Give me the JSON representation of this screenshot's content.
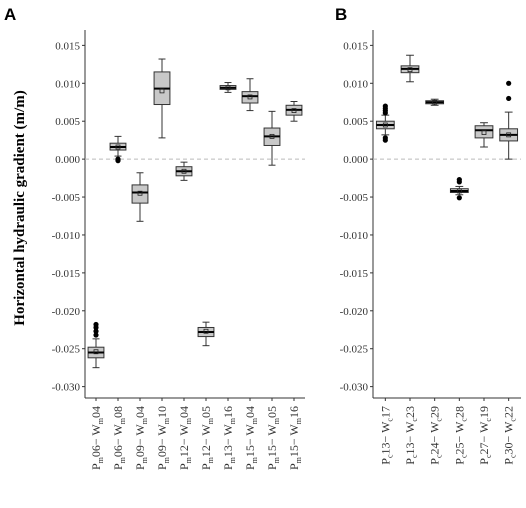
{
  "y_axis_label": "Horizontal hydraulic gradient (m/m)",
  "colors": {
    "box_fill": "#c8c8c8",
    "box_stroke": "#333333",
    "median": "#000000",
    "zero_line": "#bbbbbb",
    "outlier": "#000000"
  },
  "chart_data": [
    {
      "type": "box",
      "panel_label": "A",
      "ylim": [
        -0.0315,
        0.0165
      ],
      "y_ticks": [
        0.015,
        0.01,
        0.005,
        0.0,
        -0.005,
        -0.01,
        -0.015,
        -0.02,
        -0.025,
        -0.03
      ],
      "y_tick_labels": [
        "0.015",
        "0.010",
        "0.005",
        "0.000",
        "-0.005",
        "-0.010",
        "-0.015",
        "-0.020",
        "-0.025",
        "-0.030"
      ],
      "zero_reference_line": true,
      "categories": [
        {
          "main": "P",
          "sub": "m",
          "mid": "06− W",
          "sub2": "m",
          "end": "04"
        },
        {
          "main": "P",
          "sub": "m",
          "mid": "06− W",
          "sub2": "m",
          "end": "08"
        },
        {
          "main": "P",
          "sub": "m",
          "mid": "09− W",
          "sub2": "m",
          "end": "04"
        },
        {
          "main": "P",
          "sub": "m",
          "mid": "09− W",
          "sub2": "m",
          "end": "10"
        },
        {
          "main": "P",
          "sub": "m",
          "mid": "12− W",
          "sub2": "m",
          "end": "04"
        },
        {
          "main": "P",
          "sub": "m",
          "mid": "12− W",
          "sub2": "m",
          "end": "05"
        },
        {
          "main": "P",
          "sub": "m",
          "mid": "13− W",
          "sub2": "m",
          "end": "16"
        },
        {
          "main": "P",
          "sub": "m",
          "mid": "15− W",
          "sub2": "m",
          "end": "04"
        },
        {
          "main": "P",
          "sub": "m",
          "mid": "15− W",
          "sub2": "m",
          "end": "05"
        },
        {
          "main": "P",
          "sub": "m",
          "mid": "15− W",
          "sub2": "m",
          "end": "16"
        }
      ],
      "boxes": [
        {
          "whisker_low": -0.0275,
          "q1": -0.0262,
          "median": -0.0255,
          "q3": -0.0248,
          "whisker_high": -0.0237,
          "mean": -0.0254,
          "outliers": [
            -0.0218,
            -0.0222,
            -0.0227,
            -0.0232
          ]
        },
        {
          "whisker_low": 0.0004,
          "q1": 0.0012,
          "median": 0.0016,
          "q3": 0.0021,
          "whisker_high": 0.003,
          "mean": 0.0016,
          "outliers": [
            0.0,
            -0.0002
          ]
        },
        {
          "whisker_low": -0.0082,
          "q1": -0.0058,
          "median": -0.0044,
          "q3": -0.0034,
          "whisker_high": -0.0018,
          "mean": -0.0045,
          "outliers": []
        },
        {
          "whisker_low": 0.0028,
          "q1": 0.0072,
          "median": 0.0093,
          "q3": 0.0115,
          "whisker_high": 0.0132,
          "mean": 0.009,
          "outliers": []
        },
        {
          "whisker_low": -0.0028,
          "q1": -0.0022,
          "median": -0.0016,
          "q3": -0.001,
          "whisker_high": -0.0004,
          "mean": -0.0016,
          "outliers": []
        },
        {
          "whisker_low": -0.0246,
          "q1": -0.0234,
          "median": -0.0228,
          "q3": -0.0222,
          "whisker_high": -0.0215,
          "mean": -0.0227,
          "outliers": []
        },
        {
          "whisker_low": 0.0088,
          "q1": 0.0092,
          "median": 0.0094,
          "q3": 0.0097,
          "whisker_high": 0.0101,
          "mean": 0.0094,
          "outliers": []
        },
        {
          "whisker_low": 0.0064,
          "q1": 0.0074,
          "median": 0.0083,
          "q3": 0.0089,
          "whisker_high": 0.0106,
          "mean": 0.0082,
          "outliers": []
        },
        {
          "whisker_low": -0.0008,
          "q1": 0.0018,
          "median": 0.003,
          "q3": 0.0041,
          "whisker_high": 0.0063,
          "mean": 0.003,
          "outliers": []
        },
        {
          "whisker_low": 0.005,
          "q1": 0.0058,
          "median": 0.0065,
          "q3": 0.0071,
          "whisker_high": 0.0076,
          "mean": 0.0064,
          "outliers": []
        }
      ]
    },
    {
      "type": "box",
      "panel_label": "B",
      "ylim": [
        -0.0315,
        0.0165
      ],
      "y_ticks": [
        0.015,
        0.01,
        0.005,
        0.0,
        -0.005,
        -0.01,
        -0.015,
        -0.02,
        -0.025,
        -0.03
      ],
      "y_tick_labels": [
        "0.015",
        "0.010",
        "0.005",
        "0.000",
        "-0.005",
        "-0.010",
        "-0.015",
        "-0.020",
        "-0.025",
        "-0.030"
      ],
      "zero_reference_line": true,
      "categories": [
        {
          "main": "P",
          "sub": "c",
          "mid": "13− W",
          "sub2": "c",
          "end": "17"
        },
        {
          "main": "P",
          "sub": "c",
          "mid": "13− W",
          "sub2": "c",
          "end": "23"
        },
        {
          "main": "P",
          "sub": "c",
          "mid": "24− W",
          "sub2": "c",
          "end": "29"
        },
        {
          "main": "P",
          "sub": "c",
          "mid": "25− W",
          "sub2": "c",
          "end": "28"
        },
        {
          "main": "P",
          "sub": "c",
          "mid": "27− W",
          "sub2": "c",
          "end": "19"
        },
        {
          "main": "P",
          "sub": "c",
          "mid": "30− W",
          "sub2": "c",
          "end": "22"
        }
      ],
      "boxes": [
        {
          "whisker_low": 0.0032,
          "q1": 0.004,
          "median": 0.0045,
          "q3": 0.005,
          "whisker_high": 0.0058,
          "mean": 0.0045,
          "outliers": [
            0.0025,
            0.0028,
            0.0061,
            0.0064,
            0.0067,
            0.007
          ]
        },
        {
          "whisker_low": 0.0102,
          "q1": 0.0114,
          "median": 0.0119,
          "q3": 0.0123,
          "whisker_high": 0.0137,
          "mean": 0.0118,
          "outliers": []
        },
        {
          "whisker_low": 0.0071,
          "q1": 0.0073,
          "median": 0.0075,
          "q3": 0.0077,
          "whisker_high": 0.0079,
          "mean": 0.0075,
          "outliers": []
        },
        {
          "whisker_low": -0.0047,
          "q1": -0.0044,
          "median": -0.0042,
          "q3": -0.0039,
          "whisker_high": -0.0036,
          "mean": -0.0042,
          "outliers": [
            -0.0051,
            -0.003,
            -0.0027
          ]
        },
        {
          "whisker_low": 0.0016,
          "q1": 0.0028,
          "median": 0.0038,
          "q3": 0.0044,
          "whisker_high": 0.0048,
          "mean": 0.0035,
          "outliers": []
        },
        {
          "whisker_low": 0.0,
          "q1": 0.0024,
          "median": 0.0032,
          "q3": 0.004,
          "whisker_high": 0.0062,
          "mean": 0.0032,
          "outliers": [
            0.008,
            0.01
          ]
        }
      ]
    }
  ]
}
